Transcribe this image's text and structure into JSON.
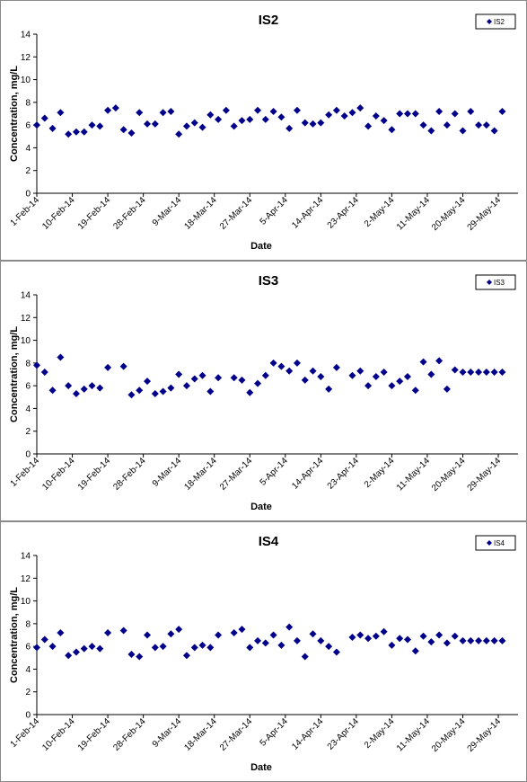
{
  "chart_data": [
    {
      "type": "scatter",
      "title": "IS2",
      "xlabel": "Date",
      "ylabel": "Concentration, mg/L",
      "ylim": [
        0,
        14
      ],
      "yticks": [
        0,
        2,
        4,
        6,
        8,
        10,
        12,
        14
      ],
      "xlim": [
        "2014-02-01",
        "2014-06-03"
      ],
      "xtick_labels": [
        "1-Feb-14",
        "10-Feb-14",
        "19-Feb-14",
        "28-Feb-14",
        "9-Mar-14",
        "18-Mar-14",
        "27-Mar-14",
        "5-Apr-14",
        "14-Apr-14",
        "23-Apr-14",
        "2-May-14",
        "11-May-14",
        "20-May-14",
        "29-May-14"
      ],
      "xtick_dates": [
        "2014-02-01",
        "2014-02-10",
        "2014-02-19",
        "2014-02-28",
        "2014-03-09",
        "2014-03-18",
        "2014-03-27",
        "2014-04-05",
        "2014-04-14",
        "2014-04-23",
        "2014-05-02",
        "2014-05-11",
        "2014-05-20",
        "2014-05-29"
      ],
      "grid": false,
      "legend_position": "top-right",
      "series": [
        {
          "name": "IS2",
          "color": "#00008b",
          "x": [
            "2014-02-01",
            "2014-02-03",
            "2014-02-05",
            "2014-02-07",
            "2014-02-09",
            "2014-02-11",
            "2014-02-13",
            "2014-02-15",
            "2014-02-17",
            "2014-02-19",
            "2014-02-21",
            "2014-02-23",
            "2014-02-25",
            "2014-02-27",
            "2014-03-01",
            "2014-03-03",
            "2014-03-05",
            "2014-03-07",
            "2014-03-09",
            "2014-03-11",
            "2014-03-13",
            "2014-03-15",
            "2014-03-17",
            "2014-03-19",
            "2014-03-21",
            "2014-03-23",
            "2014-03-25",
            "2014-03-27",
            "2014-03-29",
            "2014-03-31",
            "2014-04-02",
            "2014-04-04",
            "2014-04-06",
            "2014-04-08",
            "2014-04-10",
            "2014-04-12",
            "2014-04-14",
            "2014-04-16",
            "2014-04-18",
            "2014-04-20",
            "2014-04-22",
            "2014-04-24",
            "2014-04-26",
            "2014-04-28",
            "2014-04-30",
            "2014-05-02",
            "2014-05-04",
            "2014-05-06",
            "2014-05-08",
            "2014-05-10",
            "2014-05-12",
            "2014-05-14",
            "2014-05-16",
            "2014-05-18",
            "2014-05-20",
            "2014-05-22",
            "2014-05-24",
            "2014-05-26",
            "2014-05-28",
            "2014-05-30"
          ],
          "y": [
            6.0,
            6.6,
            5.7,
            7.1,
            5.2,
            5.4,
            5.4,
            6.0,
            5.9,
            7.3,
            7.5,
            5.6,
            5.3,
            7.1,
            6.1,
            6.1,
            7.1,
            7.2,
            5.2,
            5.9,
            6.2,
            5.8,
            6.9,
            6.5,
            7.3,
            5.9,
            6.4,
            6.5,
            7.3,
            6.5,
            7.2,
            6.7,
            5.7,
            7.3,
            6.2,
            6.1,
            6.2,
            6.9,
            7.3,
            6.8,
            7.1,
            7.5,
            5.9,
            6.8,
            6.4,
            5.6,
            7.0,
            7.0,
            7.0,
            6.0,
            5.5,
            7.2,
            6.0,
            7.0,
            5.5,
            7.2,
            6.0,
            6.0,
            5.5,
            7.2
          ]
        }
      ]
    },
    {
      "type": "scatter",
      "title": "IS3",
      "xlabel": "Date",
      "ylabel": "Concentration, mg/L",
      "ylim": [
        0,
        14
      ],
      "yticks": [
        0,
        2,
        4,
        6,
        8,
        10,
        12,
        14
      ],
      "xlim": [
        "2014-02-01",
        "2014-06-03"
      ],
      "xtick_labels": [
        "1-Feb-14",
        "10-Feb-14",
        "19-Feb-14",
        "28-Feb-14",
        "9-Mar-14",
        "18-Mar-14",
        "27-Mar-14",
        "5-Apr-14",
        "14-Apr-14",
        "23-Apr-14",
        "2-May-14",
        "11-May-14",
        "20-May-14",
        "29-May-14"
      ],
      "xtick_dates": [
        "2014-02-01",
        "2014-02-10",
        "2014-02-19",
        "2014-02-28",
        "2014-03-09",
        "2014-03-18",
        "2014-03-27",
        "2014-04-05",
        "2014-04-14",
        "2014-04-23",
        "2014-05-02",
        "2014-05-11",
        "2014-05-20",
        "2014-05-29"
      ],
      "grid": false,
      "legend_position": "top-right",
      "series": [
        {
          "name": "IS3",
          "color": "#00008b",
          "x": [
            "2014-02-01",
            "2014-02-03",
            "2014-02-05",
            "2014-02-07",
            "2014-02-09",
            "2014-02-11",
            "2014-02-13",
            "2014-02-15",
            "2014-02-17",
            "2014-02-19",
            "2014-02-23",
            "2014-02-25",
            "2014-02-27",
            "2014-02-29",
            "2014-03-03",
            "2014-03-05",
            "2014-03-07",
            "2014-03-09",
            "2014-03-11",
            "2014-03-13",
            "2014-03-15",
            "2014-03-17",
            "2014-03-19",
            "2014-03-23",
            "2014-03-25",
            "2014-03-27",
            "2014-03-29",
            "2014-03-31",
            "2014-04-02",
            "2014-04-04",
            "2014-04-06",
            "2014-04-08",
            "2014-04-10",
            "2014-04-12",
            "2014-04-14",
            "2014-04-16",
            "2014-04-18",
            "2014-04-22",
            "2014-04-24",
            "2014-04-26",
            "2014-04-28",
            "2014-04-30",
            "2014-05-02",
            "2014-05-04",
            "2014-05-06",
            "2014-05-08",
            "2014-05-10",
            "2014-05-12",
            "2014-05-14",
            "2014-05-16",
            "2014-05-18",
            "2014-05-20",
            "2014-05-22",
            "2014-05-24",
            "2014-05-26",
            "2014-05-28",
            "2014-05-30"
          ],
          "y": [
            7.8,
            7.2,
            5.6,
            8.5,
            6.0,
            5.3,
            5.7,
            6.0,
            5.8,
            7.6,
            7.7,
            5.2,
            5.6,
            6.4,
            5.3,
            5.5,
            5.8,
            7.0,
            6.0,
            6.6,
            6.9,
            5.5,
            6.7,
            6.7,
            6.5,
            5.4,
            6.2,
            6.9,
            8.0,
            7.7,
            7.3,
            8.0,
            6.5,
            7.3,
            6.8,
            5.7,
            7.6,
            6.9,
            7.3,
            6.0,
            6.8,
            7.2,
            6.0,
            6.4,
            6.8,
            5.6,
            8.1,
            7.0,
            8.2,
            5.7,
            7.4,
            7.2,
            7.2,
            7.2,
            7.2,
            7.2,
            7.2
          ]
        }
      ]
    },
    {
      "type": "scatter",
      "title": "IS4",
      "xlabel": "Date",
      "ylabel": "Concentration, mg/L",
      "ylim": [
        0,
        14
      ],
      "yticks": [
        0,
        2,
        4,
        6,
        8,
        10,
        12,
        14
      ],
      "xlim": [
        "2014-02-01",
        "2014-06-03"
      ],
      "xtick_labels": [
        "1-Feb-14",
        "10-Feb-14",
        "19-Feb-14",
        "28-Feb-14",
        "9-Mar-14",
        "18-Mar-14",
        "27-Mar-14",
        "5-Apr-14",
        "14-Apr-14",
        "23-Apr-14",
        "2-May-14",
        "11-May-14",
        "20-May-14",
        "29-May-14"
      ],
      "xtick_dates": [
        "2014-02-01",
        "2014-02-10",
        "2014-02-19",
        "2014-02-28",
        "2014-03-09",
        "2014-03-18",
        "2014-03-27",
        "2014-04-05",
        "2014-04-14",
        "2014-04-23",
        "2014-05-02",
        "2014-05-11",
        "2014-05-20",
        "2014-05-29"
      ],
      "grid": false,
      "legend_position": "top-right",
      "series": [
        {
          "name": "IS4",
          "color": "#00008b",
          "x": [
            "2014-02-01",
            "2014-02-03",
            "2014-02-05",
            "2014-02-07",
            "2014-02-09",
            "2014-02-11",
            "2014-02-13",
            "2014-02-15",
            "2014-02-17",
            "2014-02-19",
            "2014-02-23",
            "2014-02-25",
            "2014-02-27",
            "2014-03-01",
            "2014-03-03",
            "2014-03-05",
            "2014-03-07",
            "2014-03-09",
            "2014-03-11",
            "2014-03-13",
            "2014-03-15",
            "2014-03-17",
            "2014-03-19",
            "2014-03-23",
            "2014-03-25",
            "2014-03-27",
            "2014-03-29",
            "2014-03-31",
            "2014-04-02",
            "2014-04-04",
            "2014-04-06",
            "2014-04-08",
            "2014-04-10",
            "2014-04-12",
            "2014-04-14",
            "2014-04-16",
            "2014-04-18",
            "2014-04-22",
            "2014-04-24",
            "2014-04-26",
            "2014-04-28",
            "2014-04-30",
            "2014-05-02",
            "2014-05-04",
            "2014-05-06",
            "2014-05-08",
            "2014-05-10",
            "2014-05-12",
            "2014-05-14",
            "2014-05-16",
            "2014-05-18",
            "2014-05-20",
            "2014-05-22",
            "2014-05-24",
            "2014-05-26",
            "2014-05-28",
            "2014-05-30"
          ],
          "y": [
            5.9,
            6.6,
            6.0,
            7.2,
            5.2,
            5.5,
            5.8,
            6.0,
            5.8,
            7.2,
            7.4,
            5.3,
            5.1,
            7.0,
            5.9,
            6.0,
            7.1,
            7.5,
            5.2,
            5.9,
            6.1,
            5.9,
            7.0,
            7.2,
            7.5,
            5.9,
            6.5,
            6.3,
            7.0,
            6.1,
            7.7,
            6.5,
            5.1,
            7.1,
            6.5,
            6.0,
            5.5,
            6.8,
            7.0,
            6.7,
            6.9,
            7.3,
            6.1,
            6.7,
            6.6,
            5.6,
            6.9,
            6.4,
            7.0,
            6.3,
            6.9,
            6.5,
            6.5,
            6.5,
            6.5,
            6.5,
            6.5
          ]
        }
      ]
    }
  ]
}
